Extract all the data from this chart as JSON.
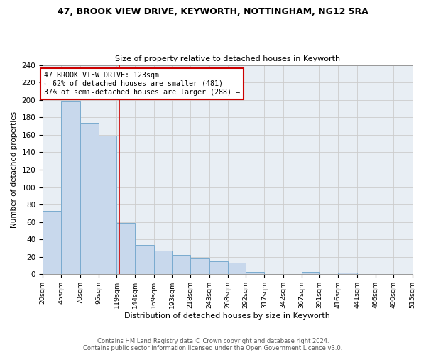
{
  "title": "47, BROOK VIEW DRIVE, KEYWORTH, NOTTINGHAM, NG12 5RA",
  "subtitle": "Size of property relative to detached houses in Keyworth",
  "xlabel": "Distribution of detached houses by size in Keyworth",
  "ylabel": "Number of detached properties",
  "bar_color": "#c8d8ec",
  "bar_edgecolor": "#7aabcf",
  "bin_edges": [
    20,
    45,
    70,
    95,
    119,
    144,
    169,
    193,
    218,
    243,
    268,
    292,
    317,
    342,
    367,
    391,
    416,
    441,
    466,
    490,
    515
  ],
  "bar_heights": [
    73,
    199,
    174,
    159,
    59,
    34,
    27,
    22,
    18,
    15,
    13,
    3,
    0,
    0,
    3,
    0,
    2,
    0,
    0,
    0
  ],
  "property_size": 123,
  "vline_color": "#cc0000",
  "annotation_text": "47 BROOK VIEW DRIVE: 123sqm\n← 62% of detached houses are smaller (481)\n37% of semi-detached houses are larger (288) →",
  "annotation_box_edgecolor": "#cc0000",
  "ylim": [
    0,
    240
  ],
  "yticks": [
    0,
    20,
    40,
    60,
    80,
    100,
    120,
    140,
    160,
    180,
    200,
    220,
    240
  ],
  "tick_labels": [
    "20sqm",
    "45sqm",
    "70sqm",
    "95sqm",
    "119sqm",
    "144sqm",
    "169sqm",
    "193sqm",
    "218sqm",
    "243sqm",
    "268sqm",
    "292sqm",
    "317sqm",
    "342sqm",
    "367sqm",
    "391sqm",
    "416sqm",
    "441sqm",
    "466sqm",
    "490sqm",
    "515sqm"
  ],
  "footer_line1": "Contains HM Land Registry data © Crown copyright and database right 2024.",
  "footer_line2": "Contains public sector information licensed under the Open Government Licence v3.0.",
  "grid_color": "#cccccc",
  "background_color": "#e8eef4"
}
